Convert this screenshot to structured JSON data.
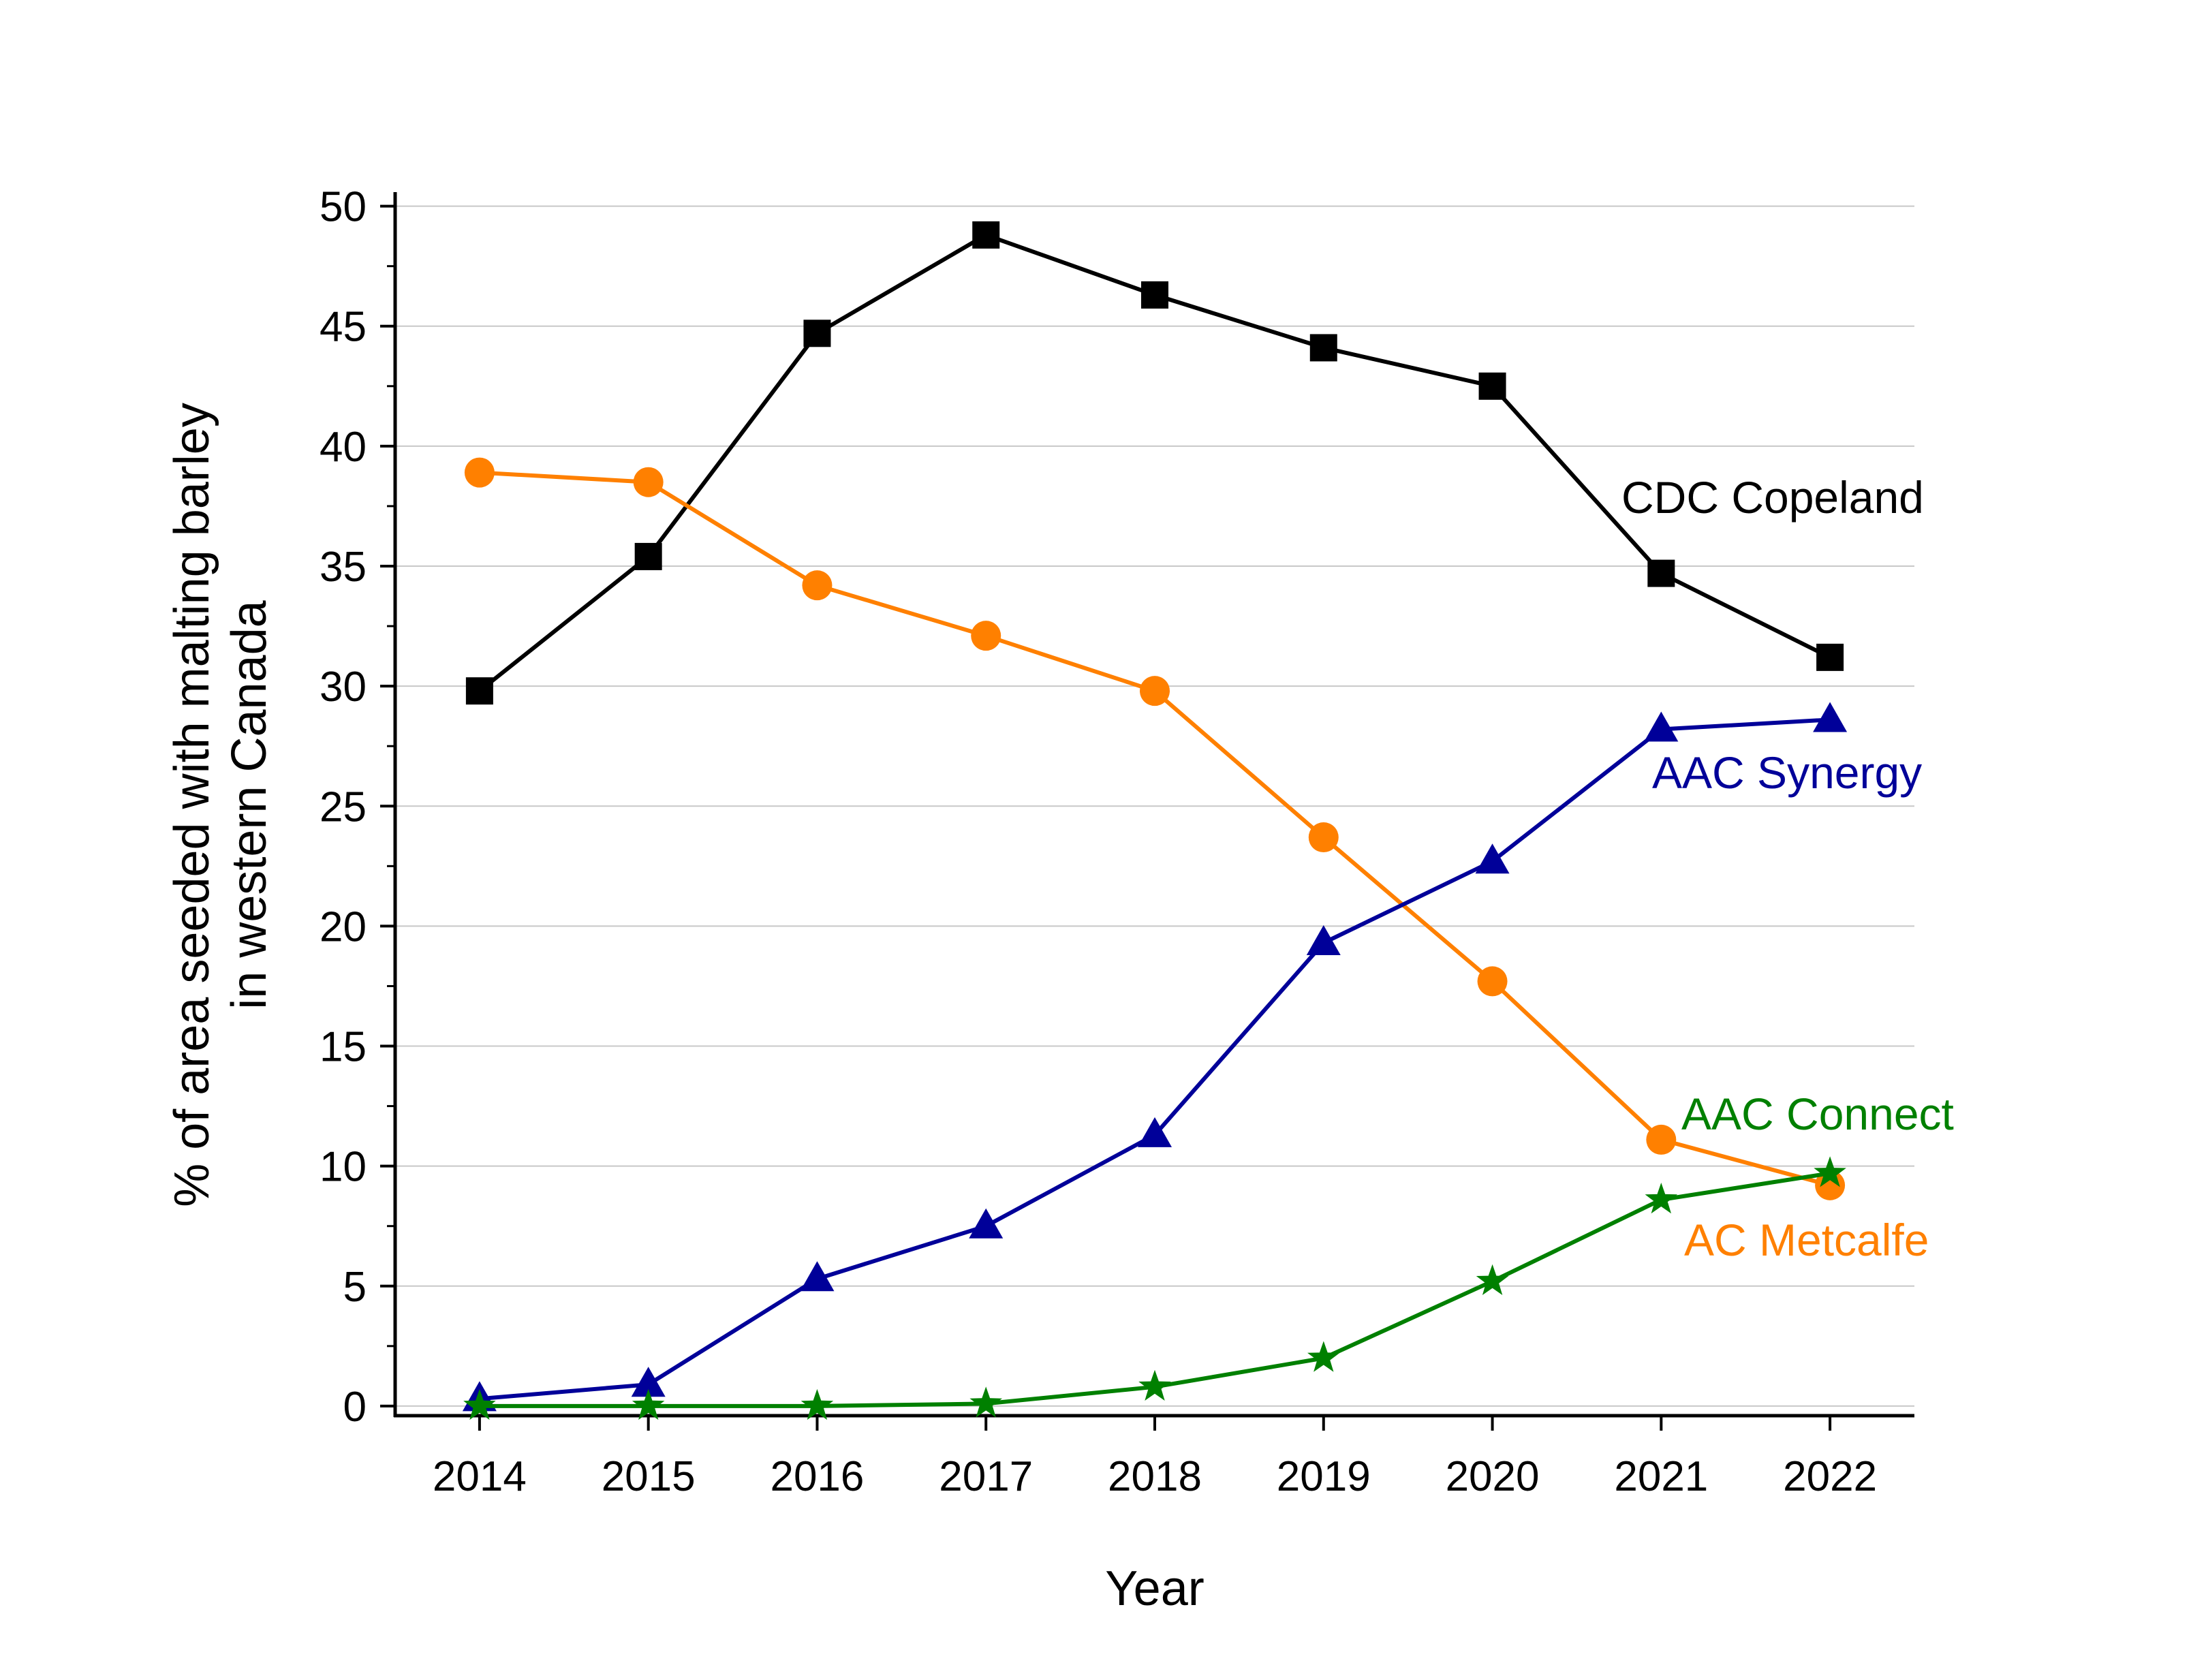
{
  "chart_data": {
    "type": "line",
    "xlabel": "Year",
    "ylabel": [
      "% of area seeded with malting barley",
      "in western Canada"
    ],
    "x": [
      2014,
      2015,
      2016,
      2017,
      2018,
      2019,
      2020,
      2021,
      2022
    ],
    "xticks": [
      "2014",
      "2015",
      "2016",
      "2017",
      "2018",
      "2019",
      "2020",
      "2021",
      "2022"
    ],
    "yticks": [
      "0",
      "5",
      "10",
      "15",
      "20",
      "25",
      "30",
      "35",
      "40",
      "45",
      "50"
    ],
    "xlim": [
      2013.5,
      2022.5
    ],
    "ylim": [
      -0.4,
      50.5
    ],
    "grid": true,
    "legend": "none",
    "series": [
      {
        "name": "CDC Copeland",
        "color": "#000000",
        "marker": "square",
        "label_position": "upper-right",
        "values": [
          29.8,
          35.4,
          44.7,
          48.8,
          46.3,
          44.1,
          42.5,
          34.7,
          31.2
        ]
      },
      {
        "name": "AC Metcalfe",
        "color": "#ff8000",
        "marker": "circle",
        "label_position": "lower-right",
        "values": [
          38.9,
          38.5,
          34.2,
          32.1,
          29.8,
          23.7,
          17.7,
          11.1,
          9.2
        ]
      },
      {
        "name": "AAC Synergy",
        "color": "#000099",
        "marker": "triangle",
        "label_position": "right",
        "values": [
          0.3,
          0.9,
          5.3,
          7.5,
          11.3,
          19.3,
          22.7,
          28.2,
          28.6
        ]
      },
      {
        "name": "AAC Connect",
        "color": "#008000",
        "marker": "star",
        "label_position": "right",
        "values": [
          0.0,
          0.0,
          0.0,
          0.1,
          0.8,
          2.0,
          5.2,
          8.6,
          9.7
        ]
      }
    ]
  }
}
